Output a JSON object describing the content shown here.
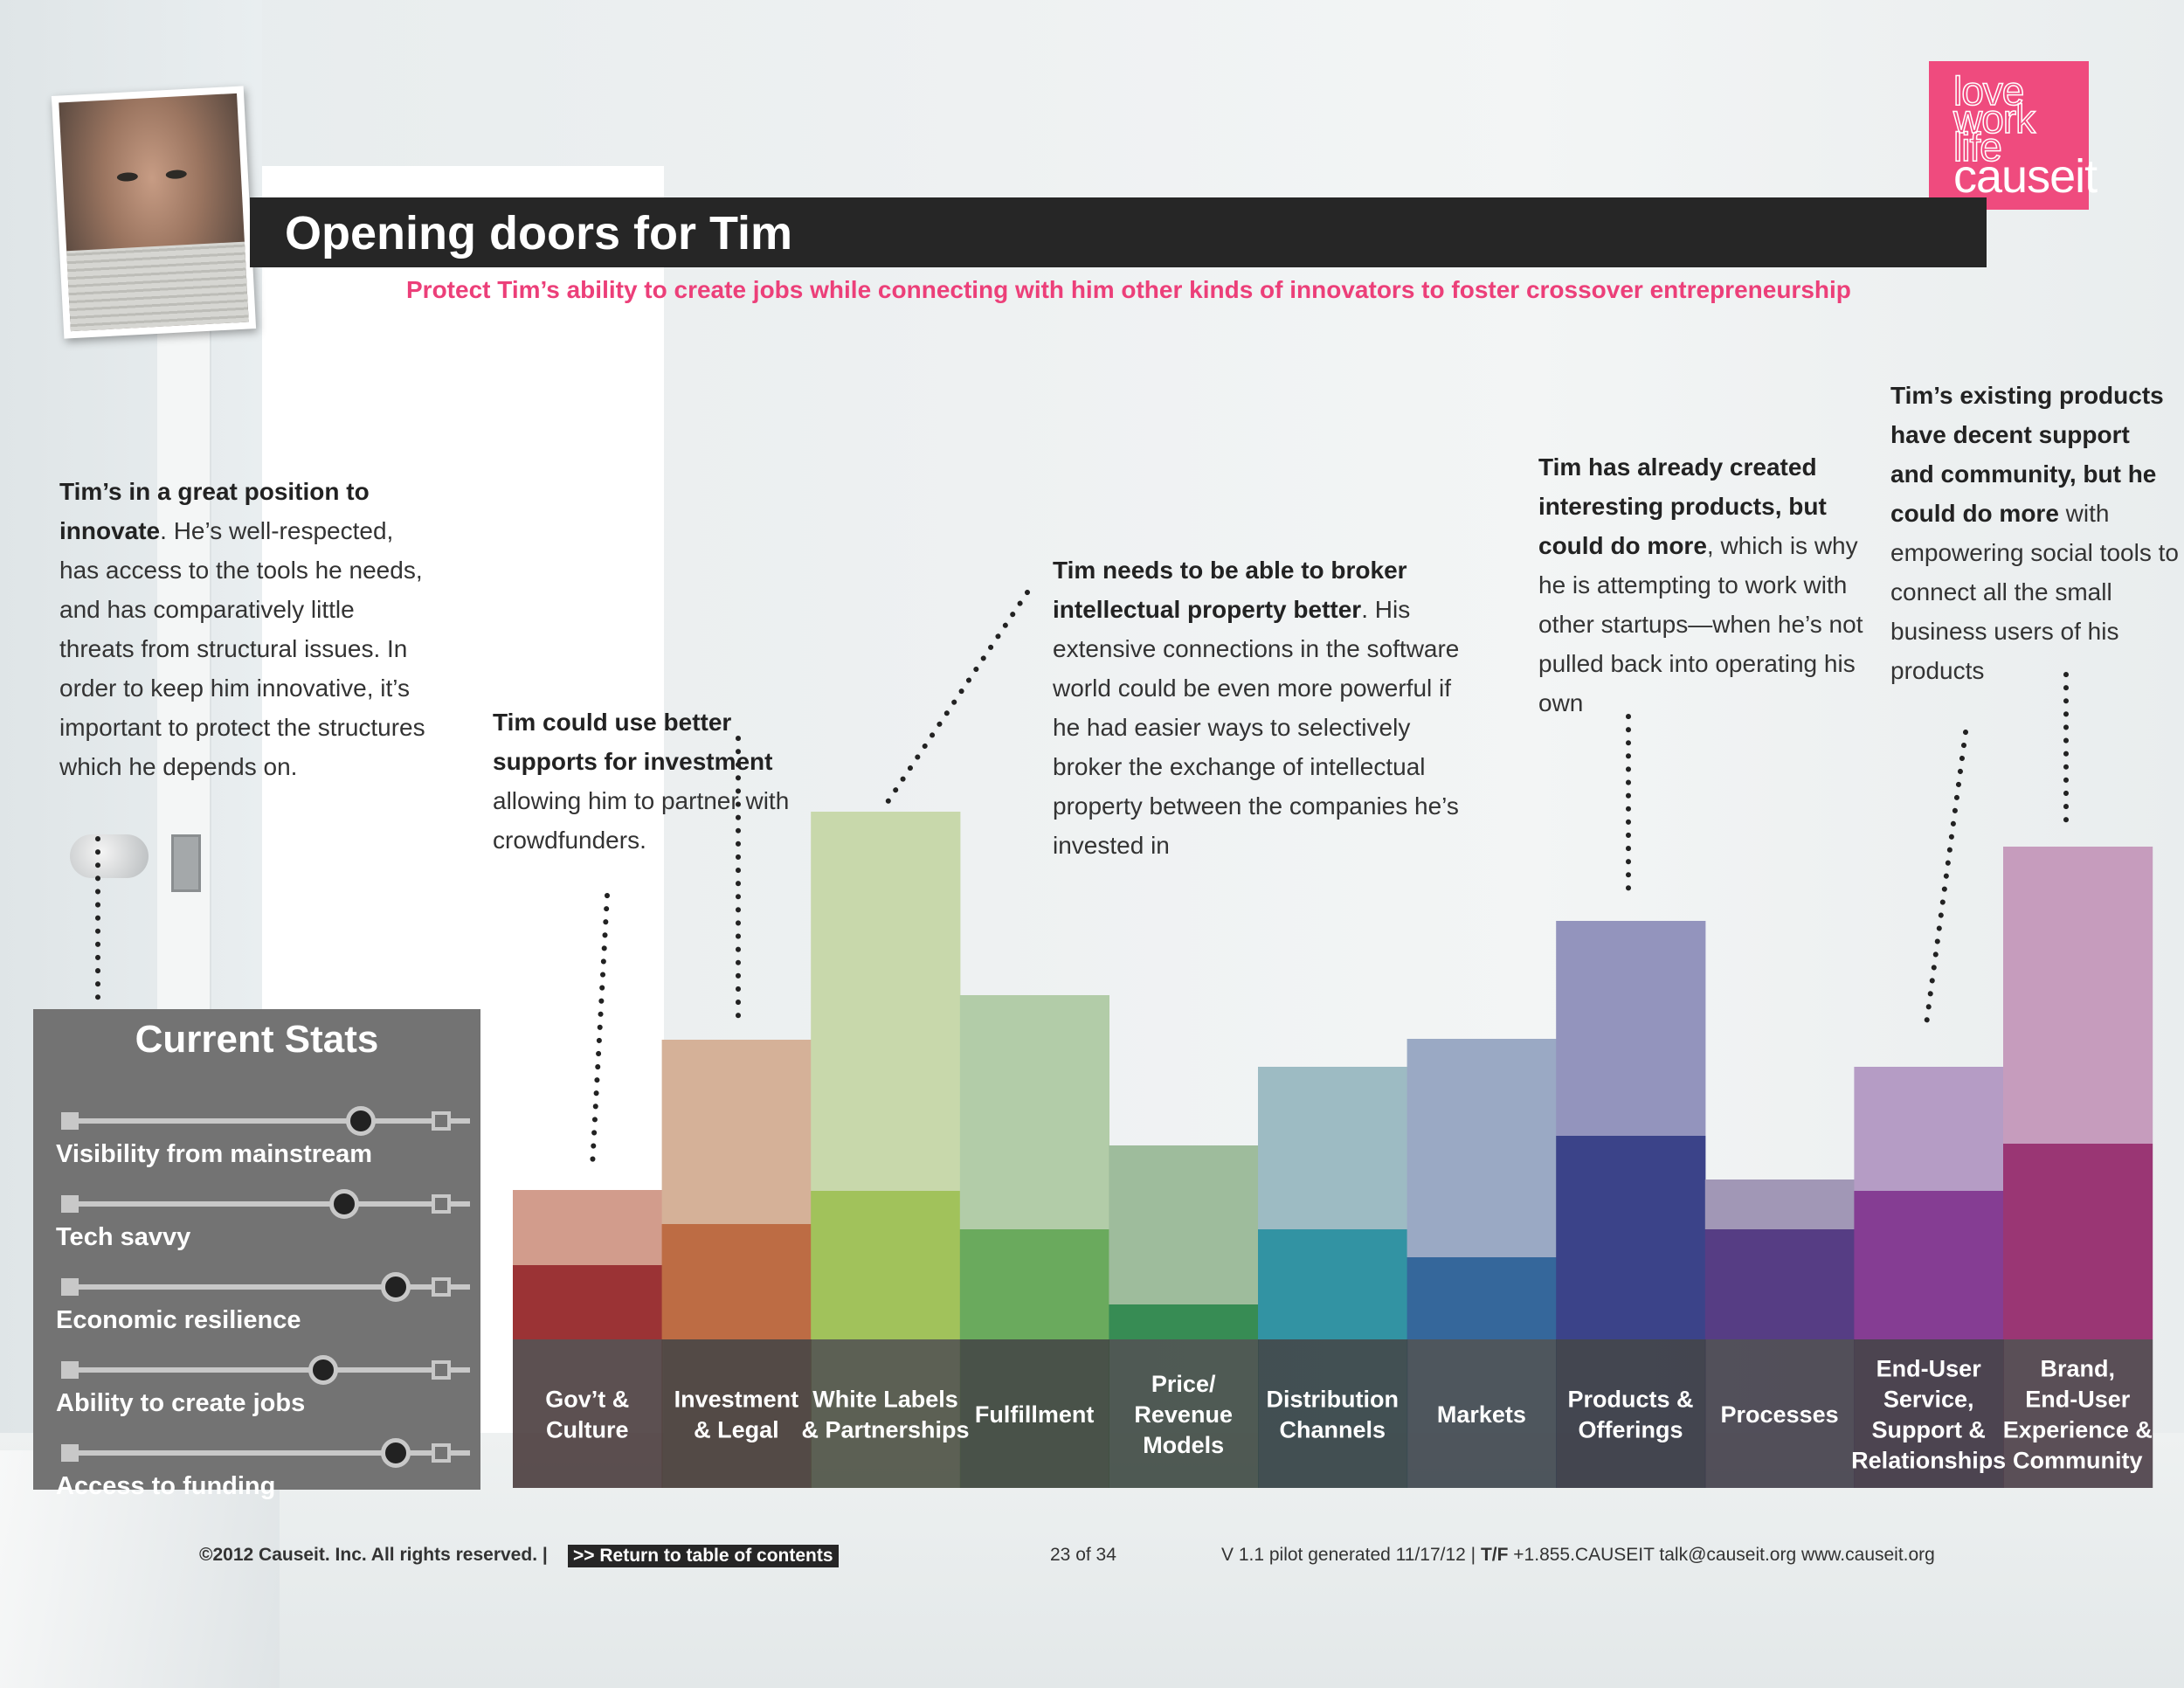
{
  "header": {
    "title": "Opening doors for Tim",
    "subtitle": "Protect Tim’s ability to create jobs while connecting with him other kinds of innovators to foster crossover entrepreneurship"
  },
  "logo": {
    "line1": "love",
    "line2": "work",
    "line3": "life",
    "brand": "causeit",
    "color": "#ef4b7e"
  },
  "notes": {
    "innovate": {
      "bold": "Tim’s in a great position to innovate",
      "text": ". He’s well-respected, has access to the tools he needs, and has comparatively little threats from structural issues. In order to keep him innovative, it’s important to protect the structures which he depends on."
    },
    "investment": {
      "bold": "Tim could use better supports for investment",
      "text": " allowing him to partner with crowdfunders."
    },
    "ip": {
      "bold": "Tim needs to be able to broker intellectual property better",
      "text": ". His extensive connections in the software world could be even more powerful if he had easier ways to selectively broker the exchange of intellectual property between the companies he’s invested in"
    },
    "products": {
      "bold": "Tim has already created interesting products, but could do more",
      "text": ", which is why he is attempting to work with other startups—when he’s not pulled back into operating his own"
    },
    "support": {
      "bold": "Tim’s existing products have decent support and community, but he could do more",
      "text": " with empowering social tools to connect all the small business users of his products"
    }
  },
  "stats": {
    "title": "Current Stats",
    "items": [
      {
        "label": "Visibility from mainstream",
        "level": 0.83
      },
      {
        "label": "Tech savvy",
        "level": 0.78
      },
      {
        "label": "Economic resilience",
        "level": 0.93
      },
      {
        "label": "Ability to create jobs",
        "level": 0.72
      },
      {
        "label": "Access to funding",
        "level": 0.93
      }
    ]
  },
  "chart_data": {
    "type": "bar",
    "stacked": true,
    "categories": [
      "Gov’t & Culture",
      "Investment & Legal",
      "White Labels & Partnerships",
      "Fulfillment",
      "Price/ Revenue Models",
      "Distribution Channels",
      "Markets",
      "Products & Offerings",
      "Processes",
      "End-User Service, Support & Relationships",
      "Brand, End-User Experience & Community"
    ],
    "series": [
      {
        "values": [
          85,
          132,
          170,
          126,
          40,
          126,
          94,
          233,
          126,
          170,
          224
        ]
      },
      {
        "values": [
          86,
          211,
          434,
          268,
          182,
          186,
          250,
          246,
          57,
          142,
          340
        ]
      }
    ],
    "colors": {
      "current": [
        "#9b3335",
        "#bd6c44",
        "#a1c25b",
        "#6aaa5d",
        "#378c54",
        "#3293a3",
        "#35679b",
        "#3b4389",
        "#563d84",
        "#853d93",
        "#9a3674"
      ],
      "potential": [
        "#d29c8c",
        "#d5b198",
        "#c8d8ab",
        "#b2cca8",
        "#9ebc9c",
        "#9dbbc3",
        "#9aa9c4",
        "#9394bd",
        "#a197b6",
        "#b59cc5",
        "#c69cbd"
      ]
    },
    "ylim": [
      0,
      600
    ]
  },
  "footer": {
    "copyright": "©2012 Causeit. Inc. All rights reserved. |",
    "return_link": ">> Return to table of contents",
    "page": "23  of  34",
    "version_pre": "V 1.1 pilot generated 11/17/12 | ",
    "version_tf": "T/F",
    "version_post": " +1.855.CAUSEIT     talk@causeit.org     www.causeit.org"
  }
}
